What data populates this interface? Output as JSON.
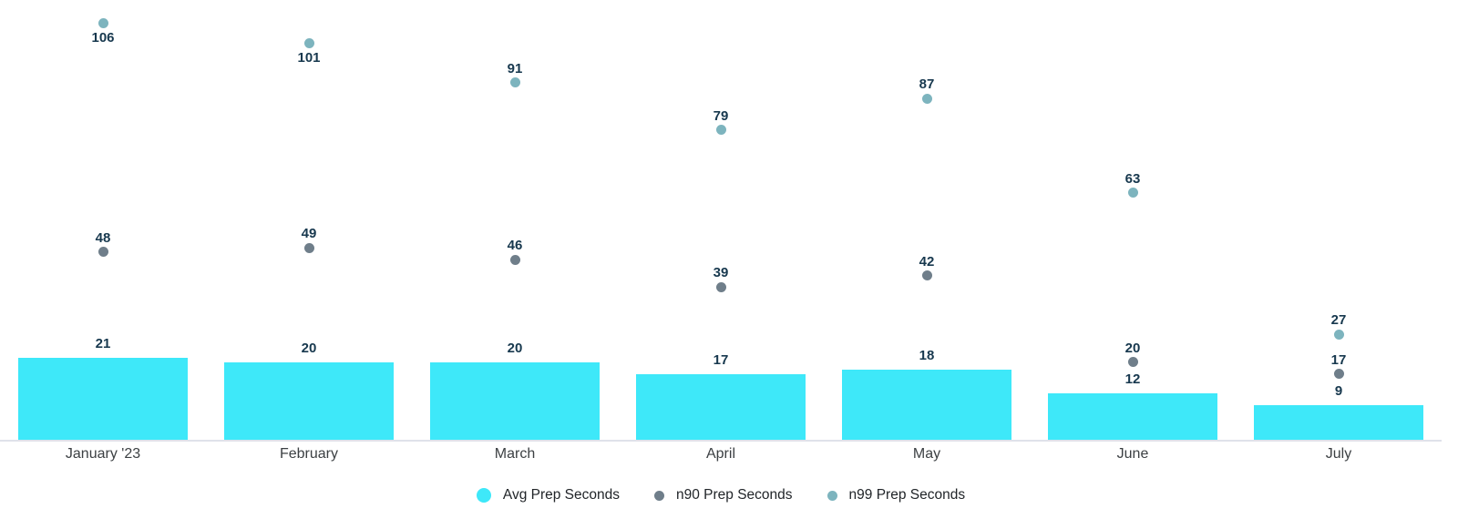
{
  "chart_data": {
    "type": "bar",
    "title": "",
    "categories": [
      "January '23",
      "February",
      "March",
      "April",
      "May",
      "June",
      "July"
    ],
    "series": [
      {
        "name": "Avg Prep Seconds",
        "type": "bar",
        "color": "#3ee8f9",
        "values": [
          21,
          20,
          20,
          17,
          18,
          12,
          9
        ]
      },
      {
        "name": "n90 Prep Seconds",
        "type": "point",
        "color": "#6f7e8a",
        "values": [
          48,
          49,
          46,
          39,
          42,
          20,
          17
        ]
      },
      {
        "name": "n99 Prep Seconds",
        "type": "point",
        "color": "#7db4be",
        "values": [
          106,
          101,
          91,
          79,
          87,
          63,
          27
        ]
      }
    ],
    "xlabel": "",
    "ylabel": "",
    "ylim": [
      0,
      112
    ],
    "grid": false,
    "y_axis_visible": false,
    "value_labels": true,
    "legend_position": "bottom"
  },
  "colors": {
    "background": "#ffffff",
    "value_label": "#17384e",
    "axis_label": "#3c4043",
    "legend_text": "#212529",
    "axis_line": "#dfe2ea"
  }
}
